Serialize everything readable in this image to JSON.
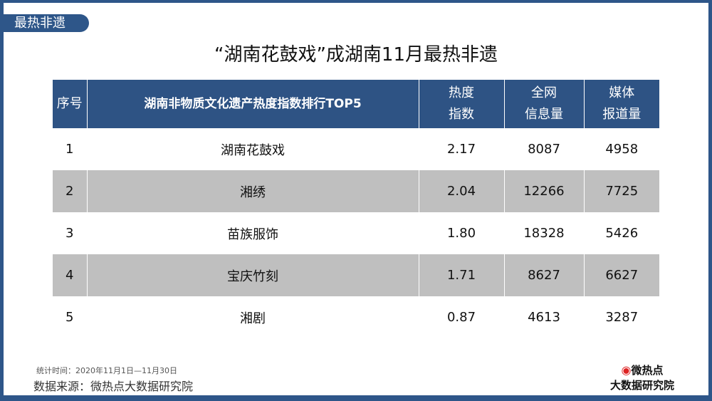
{
  "tag": "最热非遗",
  "title": "“湖南花鼓戏”成湖南11月最热非遗",
  "table": {
    "headers": [
      [
        "序号"
      ],
      [
        "湖南非物质文化遗产热度指数排行TOP5"
      ],
      [
        "热度",
        "指数"
      ],
      [
        "全网",
        "信息量"
      ],
      [
        "媒体",
        "报道量"
      ]
    ],
    "rows": [
      [
        "1",
        "湖南花鼓戏",
        "2.17",
        "8087",
        "4958"
      ],
      [
        "2",
        "湘绣",
        "2.04",
        "12266",
        "7725"
      ],
      [
        "3",
        "苗族服饰",
        "1.80",
        "18328",
        "5426"
      ],
      [
        "4",
        "宝庆竹刻",
        "1.71",
        "8627",
        "6627"
      ],
      [
        "5",
        "湘剧",
        "0.87",
        "4613",
        "3287"
      ]
    ]
  },
  "footer": {
    "stat_time": "统计时间：2020年11月1日—11月30日",
    "source": "数据来源：微热点大数据研究院"
  },
  "logo": {
    "line1": "微热点",
    "line2": "大数据研究院"
  },
  "colors": {
    "frame": "#2e5689",
    "header": "#2e5384",
    "alt_row": "#bfbfbf"
  }
}
